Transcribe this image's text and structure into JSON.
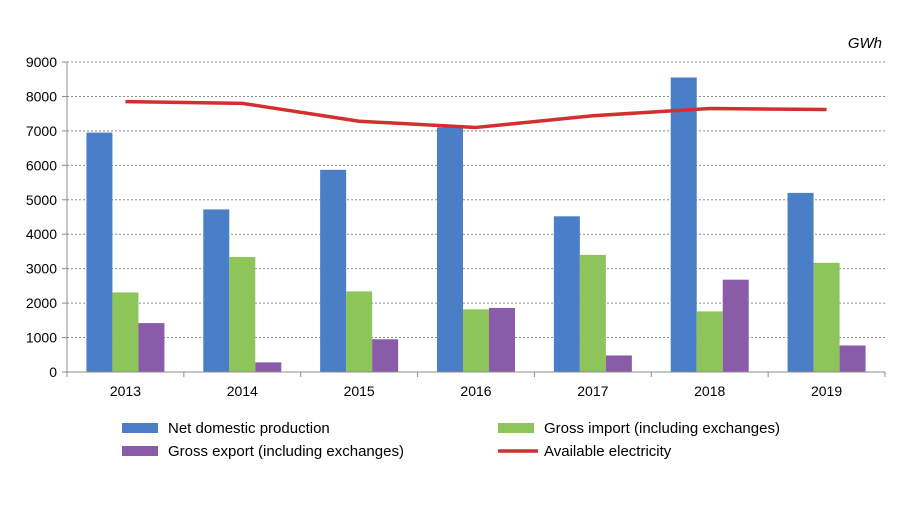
{
  "chart_data": {
    "type": "bar",
    "unit_label": "GWh",
    "categories": [
      "2013",
      "2014",
      "2015",
      "2016",
      "2017",
      "2018",
      "2019"
    ],
    "series": [
      {
        "name": "Net domestic production",
        "kind": "bar",
        "color": "#4a7ec6",
        "values": [
          6950,
          4720,
          5870,
          7100,
          4520,
          8550,
          5200
        ]
      },
      {
        "name": "Gross import (including exchanges)",
        "kind": "bar",
        "color": "#8ec55a",
        "values": [
          2310,
          3340,
          2340,
          1820,
          3400,
          1760,
          3170
        ]
      },
      {
        "name": "Gross export (including exchanges)",
        "kind": "bar",
        "color": "#8a5ba8",
        "values": [
          1420,
          280,
          950,
          1860,
          480,
          2680,
          770
        ]
      },
      {
        "name": "Available electricity",
        "kind": "line",
        "color": "#d42f2f",
        "values": [
          7850,
          7800,
          7280,
          7100,
          7440,
          7650,
          7620
        ]
      }
    ],
    "y_ticks": [
      "0",
      "1000",
      "2000",
      "3000",
      "4000",
      "5000",
      "6000",
      "7000",
      "8000",
      "9000"
    ],
    "ylim": [
      0,
      9000
    ],
    "grid": true,
    "legend_position": "bottom",
    "title": "",
    "xlabel": "",
    "ylabel": ""
  }
}
